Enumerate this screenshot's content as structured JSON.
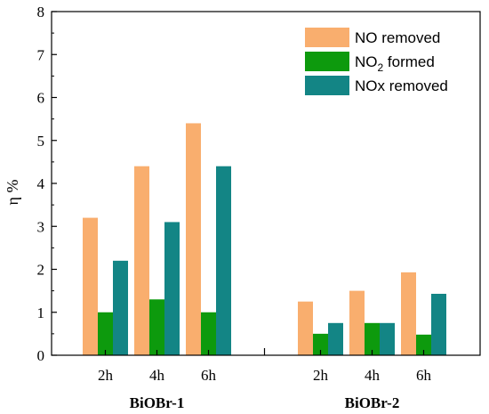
{
  "chart_data": {
    "type": "bar",
    "ylabel": "η %",
    "ylim": [
      0,
      8
    ],
    "yticks": [
      0,
      1,
      2,
      3,
      4,
      5,
      6,
      7,
      8
    ],
    "groups": [
      {
        "label": "BiOBr-1",
        "categories": [
          "2h",
          "4h",
          "6h"
        ]
      },
      {
        "label": "BiOBr-2",
        "categories": [
          "2h",
          "4h",
          "6h"
        ]
      }
    ],
    "series": [
      {
        "name": "NO    removed",
        "legend_main": "NO",
        "legend_sub": "",
        "legend_rest": "    removed",
        "color": "#F9AE6E",
        "values": [
          [
            3.2,
            4.4,
            5.4
          ],
          [
            1.25,
            1.5,
            1.93
          ]
        ]
      },
      {
        "name": "NO2  formed",
        "legend_main": "NO",
        "legend_sub": "2",
        "legend_rest": "  formed",
        "color": "#0D9A0D",
        "values": [
          [
            1.0,
            1.3,
            1.0
          ],
          [
            0.5,
            0.75,
            0.48
          ]
        ]
      },
      {
        "name": "NOx  removed",
        "legend_main": "NOx",
        "legend_sub": "",
        "legend_rest": "  removed",
        "color": "#138585",
        "values": [
          [
            2.2,
            3.1,
            4.4
          ],
          [
            0.75,
            0.75,
            1.43
          ]
        ]
      }
    ],
    "legend_position": "top-right",
    "grid": false
  }
}
